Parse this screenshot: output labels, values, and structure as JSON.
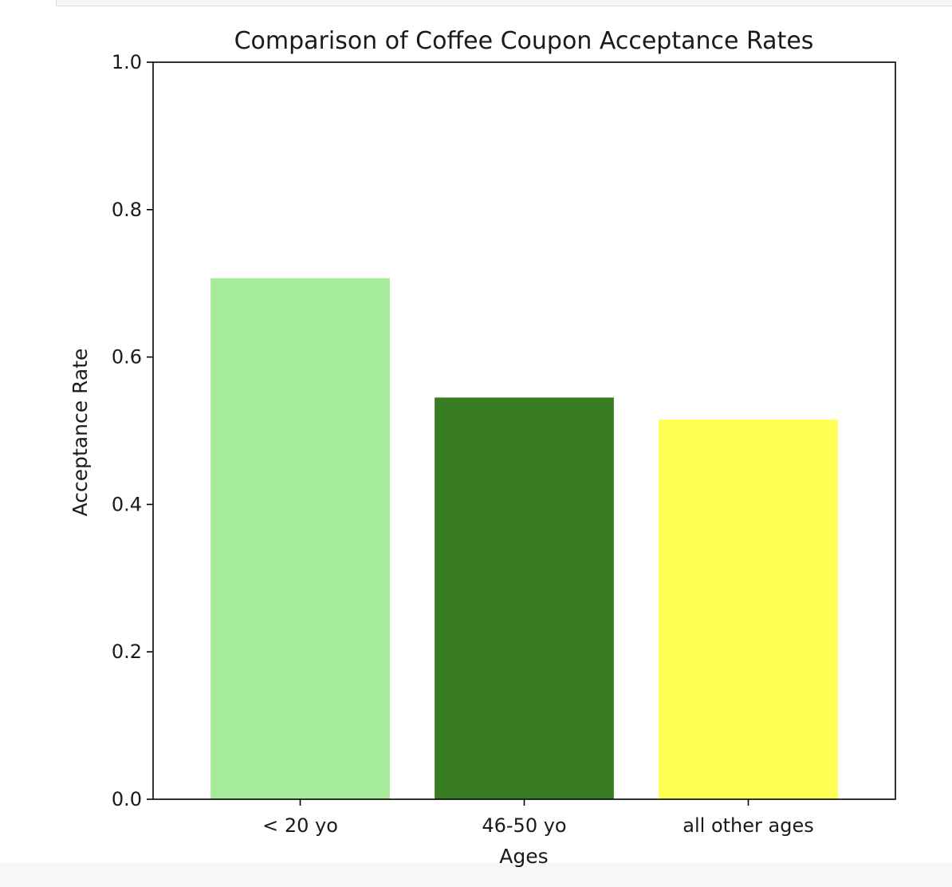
{
  "chart_data": {
    "type": "bar",
    "title": "Comparison of Coffee Coupon Acceptance Rates",
    "xlabel": "Ages",
    "ylabel": "Acceptance Rate",
    "categories": [
      "< 20 yo",
      "46-50 yo",
      "all other ages"
    ],
    "values": [
      0.707,
      0.545,
      0.515
    ],
    "colors": [
      "#a6eb99",
      "#387d22",
      "#ffff54"
    ],
    "ylim": [
      0,
      1.0
    ],
    "yticks": [
      "0.0",
      "0.2",
      "0.4",
      "0.6",
      "0.8",
      "1.0"
    ],
    "grid": false,
    "legend": "none"
  }
}
